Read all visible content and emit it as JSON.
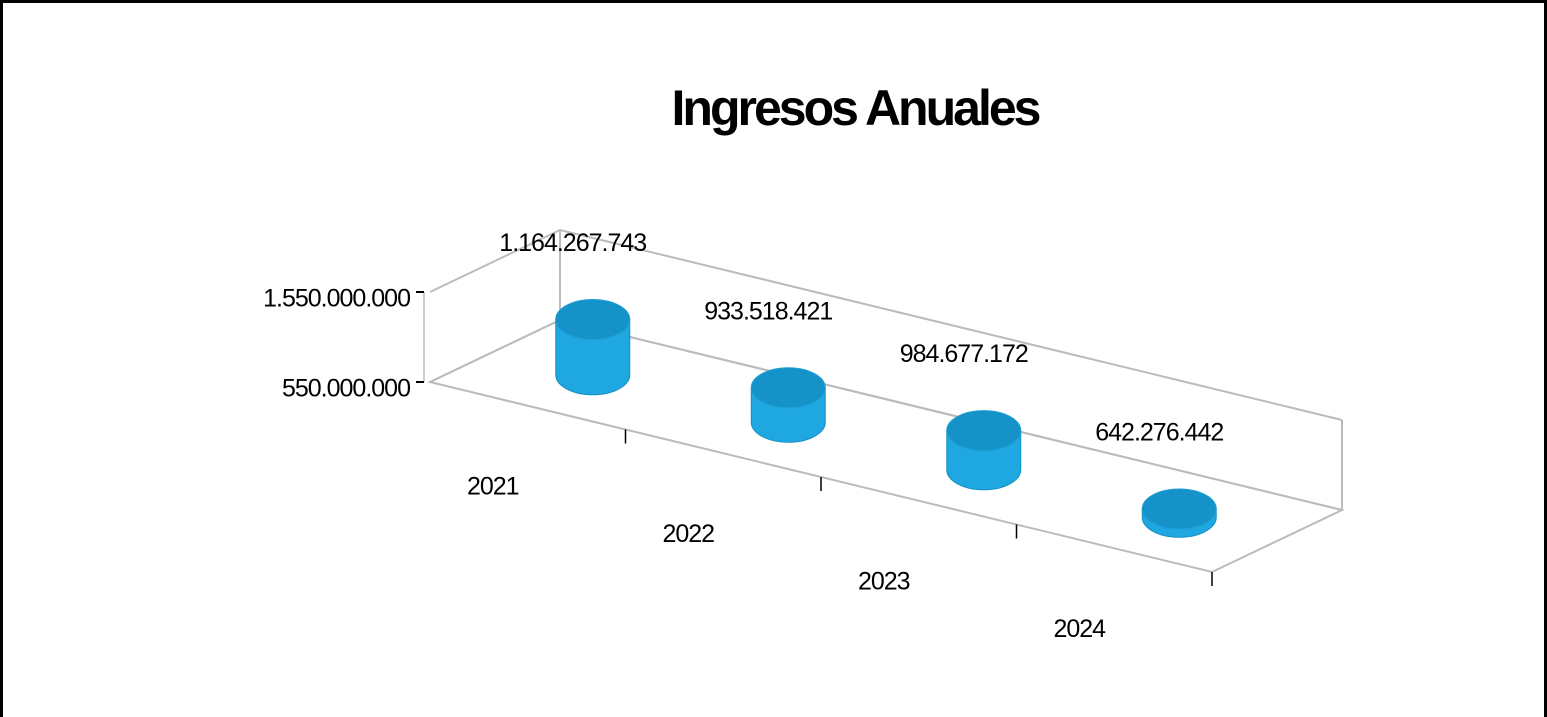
{
  "chart_data": {
    "type": "bar3d",
    "title": "Ingresos Anuales",
    "categories": [
      "2021",
      "2022",
      "2023",
      "2024"
    ],
    "values": [
      1164267743,
      933518421,
      984677172,
      642276442
    ],
    "value_labels": [
      "1.164.267.743",
      "933.518.421",
      "984.677.172",
      "642.276.442"
    ],
    "color": "#1ea7e1",
    "ylim": [
      550000000,
      1550000000
    ],
    "yticks": [
      {
        "value": 550000000,
        "label": "550.000.000"
      },
      {
        "value": 1550000000,
        "label": "1.550.000.000"
      }
    ],
    "grid": true
  }
}
